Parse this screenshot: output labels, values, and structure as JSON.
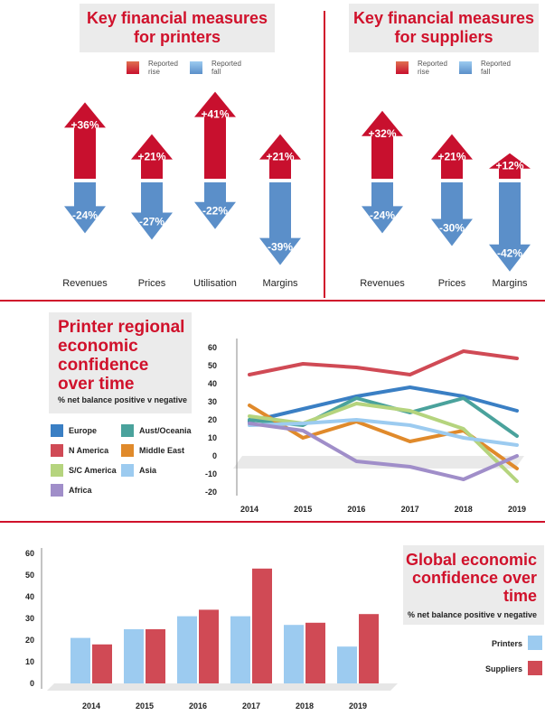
{
  "printers_panel": {
    "title": "Key financial measures for printers",
    "legend_rise": "Reported rise",
    "legend_fall": "Reported fall",
    "items": [
      {
        "label": "Revenues",
        "rise": "+36%",
        "fall": "-24%",
        "rise_value": 36,
        "fall_value": -24
      },
      {
        "label": "Prices",
        "rise": "+21%",
        "fall": "-27%",
        "rise_value": 21,
        "fall_value": -27
      },
      {
        "label": "Utilisation",
        "rise": "+41%",
        "fall": "-22%",
        "rise_value": 41,
        "fall_value": -22
      },
      {
        "label": "Margins",
        "rise": "+21%",
        "fall": "-39%",
        "rise_value": 21,
        "fall_value": -39
      }
    ]
  },
  "suppliers_panel": {
    "title": "Key financial measures for suppliers",
    "legend_rise": "Reported rise",
    "legend_fall": "Reported fall",
    "items": [
      {
        "label": "Revenues",
        "rise": "+32%",
        "fall": "-24%",
        "rise_value": 32,
        "fall_value": -24
      },
      {
        "label": "Prices",
        "rise": "+21%",
        "fall": "-30%",
        "rise_value": 21,
        "fall_value": -30
      },
      {
        "label": "Margins",
        "rise": "+12%",
        "fall": "-42%",
        "rise_value": 12,
        "fall_value": -42
      }
    ]
  },
  "colors": {
    "rise": "#c8102e",
    "fall": "#5b8fc9",
    "accent": "#d0112b",
    "panel_bg": "#ebebeb"
  },
  "regional": {
    "title": "Printer regional economic confidence over time",
    "subtitle": "% net balance positive v negative"
  },
  "global": {
    "title": "Global economic confidence over time",
    "subtitle": "% net balance positive v negative"
  },
  "chart_data": [
    {
      "type": "line",
      "title": "Printer regional economic confidence over time",
      "x": [
        "2014",
        "2015",
        "2016",
        "2017",
        "2018",
        "2019"
      ],
      "ylim": [
        -20,
        60
      ],
      "yticks": [
        -20,
        -10,
        0,
        10,
        20,
        30,
        40,
        50,
        60
      ],
      "grid": false,
      "legend_position": "left",
      "series": [
        {
          "name": "Europe",
          "color": "#3a7fc4",
          "values": [
            19,
            26,
            33,
            38,
            33,
            25
          ]
        },
        {
          "name": "Aust/Oceania",
          "color": "#4aa29c",
          "values": [
            20,
            17,
            32,
            24,
            32,
            11
          ]
        },
        {
          "name": "N America",
          "color": "#d04a55",
          "values": [
            45,
            51,
            49,
            45,
            58,
            54
          ]
        },
        {
          "name": "Middle East",
          "color": "#e08a2b",
          "values": [
            28,
            10,
            19,
            8,
            14,
            -7
          ]
        },
        {
          "name": "S/C America",
          "color": "#b5d47e",
          "values": [
            22,
            18,
            29,
            25,
            15,
            -14
          ]
        },
        {
          "name": "Asia",
          "color": "#9ccbf0",
          "values": [
            17,
            18,
            20,
            17,
            10,
            6
          ]
        },
        {
          "name": "Africa",
          "color": "#a08ec9",
          "values": [
            18,
            14,
            -3,
            -6,
            -13,
            0
          ]
        }
      ]
    },
    {
      "type": "bar",
      "title": "Global economic confidence over time",
      "categories": [
        "2014",
        "2015",
        "2016",
        "2017",
        "2018",
        "2019"
      ],
      "ylim": [
        0,
        60
      ],
      "yticks": [
        0,
        10,
        20,
        30,
        40,
        50,
        60
      ],
      "legend_position": "right",
      "series": [
        {
          "name": "Printers",
          "color": "#9ccbf0",
          "values": [
            21,
            25,
            31,
            31,
            27,
            17
          ]
        },
        {
          "name": "Suppliers",
          "color": "#d04a55",
          "values": [
            18,
            25,
            34,
            53,
            28,
            32
          ]
        }
      ]
    }
  ]
}
